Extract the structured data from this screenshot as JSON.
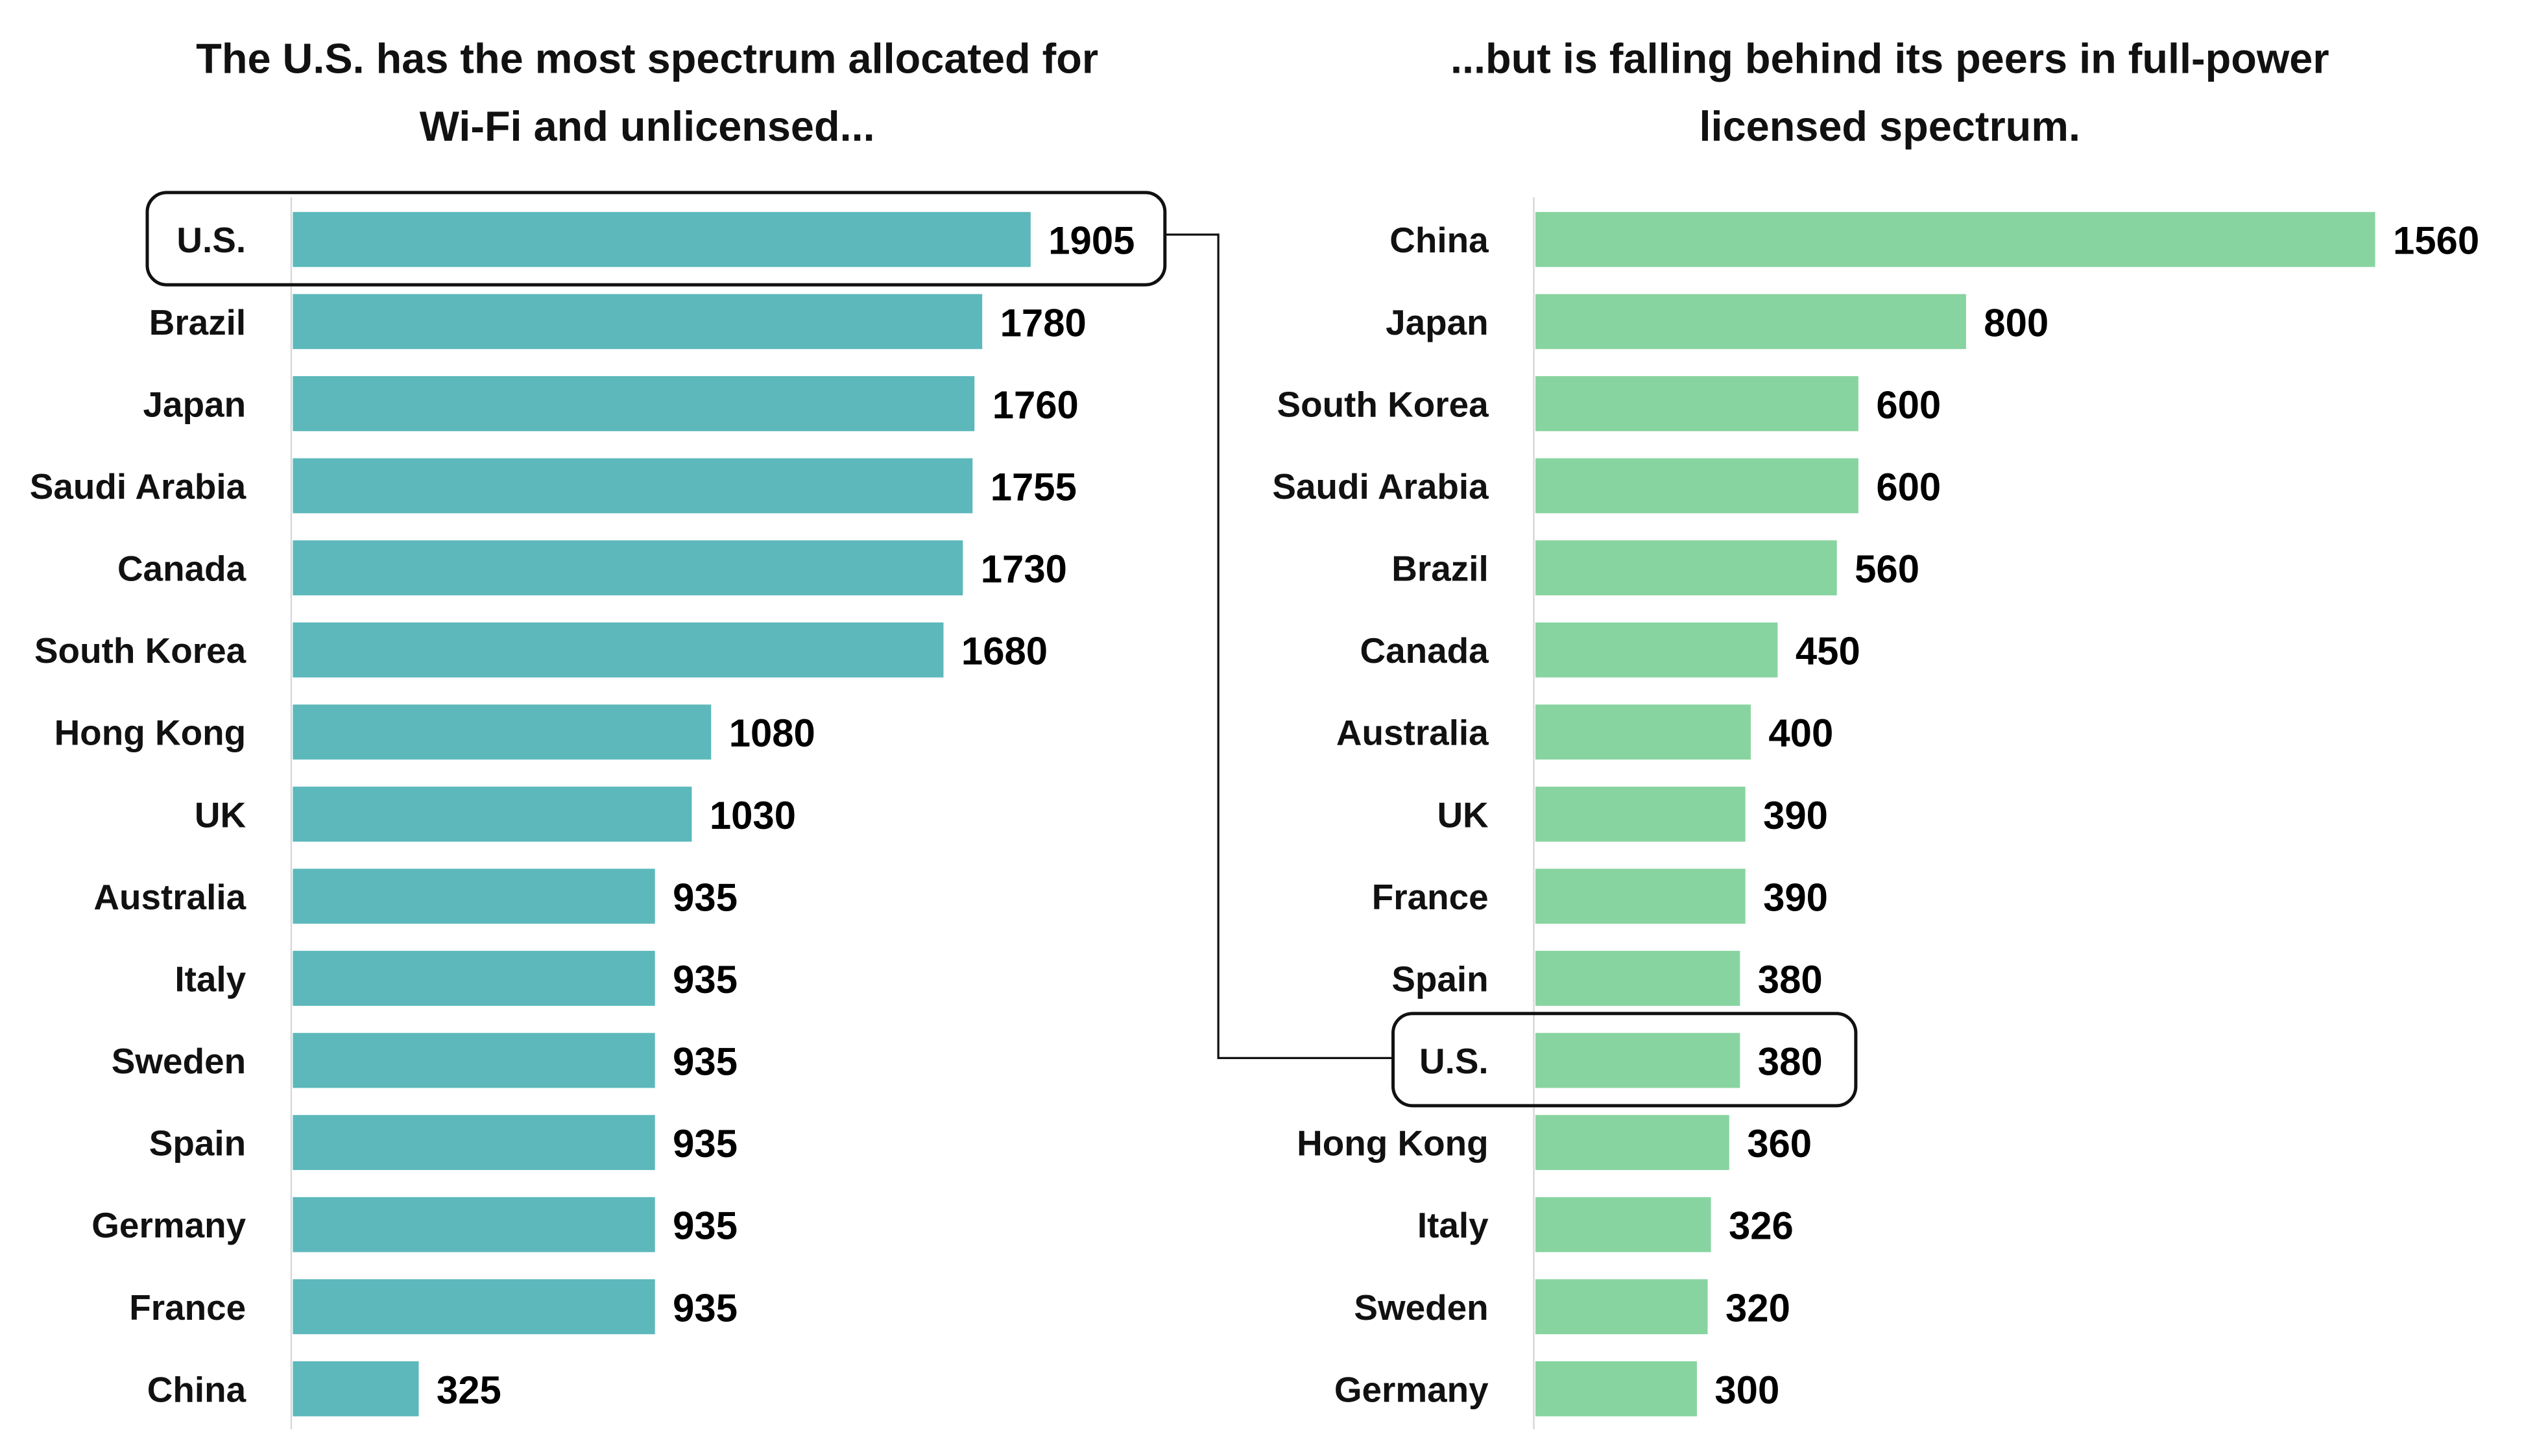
{
  "chart_data": [
    {
      "type": "bar",
      "orientation": "horizontal",
      "title_lines": [
        "The U.S. has the most spectrum allocated for",
        "Wi-Fi and unlicensed..."
      ],
      "color": "#5cb8bb",
      "highlight": "U.S.",
      "categories": [
        "U.S.",
        "Brazil",
        "Japan",
        "Saudi Arabia",
        "Canada",
        "South Korea",
        "Hong Kong",
        "UK",
        "Australia",
        "Italy",
        "Sweden",
        "Spain",
        "Germany",
        "France",
        "China"
      ],
      "values": [
        1905,
        1780,
        1760,
        1755,
        1730,
        1680,
        1080,
        1030,
        935,
        935,
        935,
        935,
        935,
        935,
        325
      ],
      "data_labels": true,
      "grid": false
    },
    {
      "type": "bar",
      "orientation": "horizontal",
      "title_lines": [
        "...but is falling behind its peers in full-power",
        "licensed spectrum."
      ],
      "color": "#88d4a0",
      "highlight": "U.S.",
      "categories": [
        "China",
        "Japan",
        "South Korea",
        "Saudi Arabia",
        "Brazil",
        "Canada",
        "Australia",
        "UK",
        "France",
        "Spain",
        "U.S.",
        "Hong Kong",
        "Italy",
        "Sweden",
        "Germany"
      ],
      "values": [
        1560,
        800,
        600,
        600,
        560,
        450,
        400,
        390,
        390,
        380,
        380,
        360,
        326,
        320,
        300
      ],
      "data_labels": true,
      "grid": false
    }
  ]
}
